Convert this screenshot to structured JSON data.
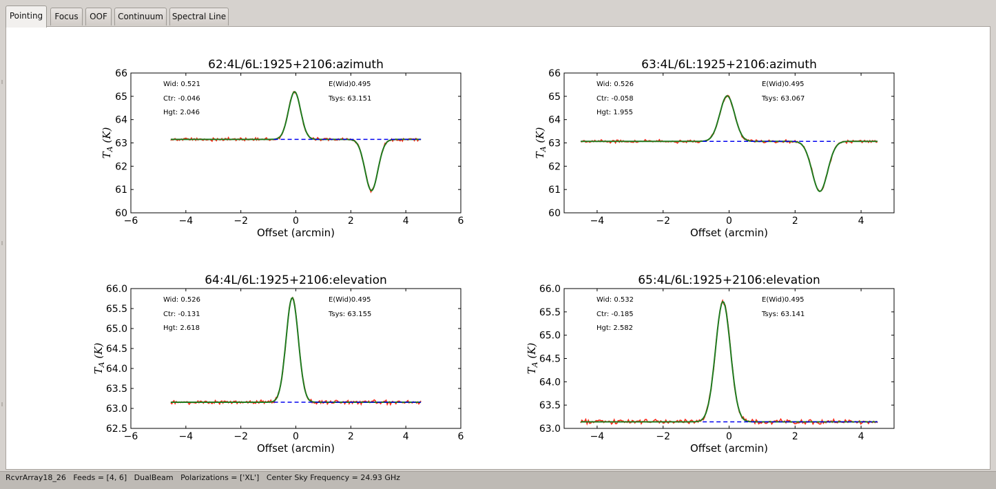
{
  "tabs": [
    {
      "label": "Pointing",
      "active": true
    },
    {
      "label": "Focus",
      "active": false
    },
    {
      "label": "OOF",
      "active": false
    },
    {
      "label": "Continuum",
      "active": false
    },
    {
      "label": "Spectral Line",
      "active": false
    }
  ],
  "status_bar": {
    "receiver": "RcvrArray18_26",
    "feeds": "Feeds = [4, 6]",
    "mode": "DualBeam",
    "polarizations": "Polarizations = ['XL']",
    "frequency": "Center Sky Frequency = 24.93 GHz"
  },
  "colors": {
    "data_line": "#ff2a1a",
    "fit_line": "#1f7a1f",
    "baseline": "#0000ee"
  },
  "chart_data": [
    {
      "type": "line",
      "title": "62:4L/6L:1925+2106:azimuth",
      "xlabel": "Offset (arcmin)",
      "ylabel": "T_A (K)",
      "xlim": [
        -6,
        6
      ],
      "ylim": [
        60,
        66
      ],
      "xticks": [
        -6,
        -4,
        -2,
        0,
        2,
        4,
        6
      ],
      "yticks": [
        60,
        61,
        62,
        63,
        64,
        65,
        66
      ],
      "ytick_labels": [
        "60",
        "61",
        "62",
        "63",
        "64",
        "65",
        "66"
      ],
      "xtick_labels": [
        "−6",
        "−4",
        "−2",
        "0",
        "2",
        "4",
        "6"
      ],
      "annotations": {
        "wid": "Wid: 0.521",
        "ctr": "Ctr: -0.046",
        "hgt": "Hgt: 2.046",
        "ewid": "E(Wid)0.495",
        "tsys": "Tsys: 63.151"
      },
      "baseline": 63.151,
      "data_range": [
        -4.55,
        4.55
      ],
      "baseline_range": [
        -0.8,
        4.55
      ],
      "gaussians": [
        {
          "amp": 2.046,
          "ctr": -0.046,
          "wid": 0.521
        },
        {
          "amp": -2.2,
          "ctr": 2.75,
          "wid": 0.55
        }
      ],
      "noise": 0.04,
      "series": [
        {
          "name": "data",
          "role": "data"
        },
        {
          "name": "fit",
          "role": "fit"
        },
        {
          "name": "baseline",
          "role": "baseline"
        }
      ]
    },
    {
      "type": "line",
      "title": "63:4L/6L:1925+2106:azimuth",
      "xlabel": "Offset (arcmin)",
      "ylabel": "T_A (K)",
      "xlim": [
        -5,
        5
      ],
      "ylim": [
        60,
        66
      ],
      "xticks": [
        -4,
        -2,
        0,
        2,
        4
      ],
      "yticks": [
        60,
        61,
        62,
        63,
        64,
        65,
        66
      ],
      "ytick_labels": [
        "60",
        "61",
        "62",
        "63",
        "64",
        "65",
        "66"
      ],
      "xtick_labels": [
        "−4",
        "−2",
        "0",
        "2",
        "4"
      ],
      "annotations": {
        "wid": "Wid: 0.526",
        "ctr": "Ctr: -0.058",
        "hgt": "Hgt: 1.955",
        "ewid": "E(Wid)0.495",
        "tsys": "Tsys: 63.067"
      },
      "baseline": 63.067,
      "data_range": [
        -4.5,
        4.5
      ],
      "baseline_range": [
        -0.8,
        3.2
      ],
      "gaussians": [
        {
          "amp": 1.955,
          "ctr": -0.058,
          "wid": 0.526
        },
        {
          "amp": -2.15,
          "ctr": 2.75,
          "wid": 0.55
        }
      ],
      "noise": 0.04,
      "series": [
        {
          "name": "data",
          "role": "data"
        },
        {
          "name": "fit",
          "role": "fit"
        },
        {
          "name": "baseline",
          "role": "baseline"
        }
      ]
    },
    {
      "type": "line",
      "title": "64:4L/6L:1925+2106:elevation",
      "xlabel": "Offset (arcmin)",
      "ylabel": "T_A (K)",
      "xlim": [
        -6,
        6
      ],
      "ylim": [
        62.5,
        66.0
      ],
      "xticks": [
        -6,
        -4,
        -2,
        0,
        2,
        4,
        6
      ],
      "yticks": [
        62.5,
        63.0,
        63.5,
        64.0,
        64.5,
        65.0,
        65.5,
        66.0
      ],
      "ytick_labels": [
        "62.5",
        "63.0",
        "63.5",
        "64.0",
        "64.5",
        "65.0",
        "65.5",
        "66.0"
      ],
      "xtick_labels": [
        "−6",
        "−4",
        "−2",
        "0",
        "2",
        "4",
        "6"
      ],
      "annotations": {
        "wid": "Wid: 0.526",
        "ctr": "Ctr: -0.131",
        "hgt": "Hgt: 2.618",
        "ewid": "E(Wid)0.495",
        "tsys": "Tsys: 63.155"
      },
      "baseline": 63.155,
      "data_range": [
        -4.55,
        4.55
      ],
      "baseline_range": [
        -0.8,
        4.55
      ],
      "gaussians": [
        {
          "amp": 2.618,
          "ctr": -0.131,
          "wid": 0.526
        }
      ],
      "noise": 0.03,
      "series": [
        {
          "name": "data",
          "role": "data"
        },
        {
          "name": "fit",
          "role": "fit"
        },
        {
          "name": "baseline",
          "role": "baseline"
        }
      ]
    },
    {
      "type": "line",
      "title": "65:4L/6L:1925+2106:elevation",
      "xlabel": "Offset (arcmin)",
      "ylabel": "T_A (K)",
      "xlim": [
        -5,
        5
      ],
      "ylim": [
        63.0,
        66.0
      ],
      "xticks": [
        -4,
        -2,
        0,
        2,
        4
      ],
      "yticks": [
        63.0,
        63.5,
        64.0,
        64.5,
        65.0,
        65.5,
        66.0
      ],
      "ytick_labels": [
        "63.0",
        "63.5",
        "64.0",
        "64.5",
        "65.0",
        "65.5",
        "66.0"
      ],
      "xtick_labels": [
        "−4",
        "−2",
        "0",
        "2",
        "4"
      ],
      "annotations": {
        "wid": "Wid: 0.532",
        "ctr": "Ctr: -0.185",
        "hgt": "Hgt: 2.582",
        "ewid": "E(Wid)0.495",
        "tsys": "Tsys: 63.141"
      },
      "baseline": 63.141,
      "data_range": [
        -4.5,
        4.5
      ],
      "baseline_range": [
        -0.8,
        4.5
      ],
      "gaussians": [
        {
          "amp": 2.582,
          "ctr": -0.185,
          "wid": 0.532
        }
      ],
      "noise": 0.03,
      "series": [
        {
          "name": "data",
          "role": "data"
        },
        {
          "name": "fit",
          "role": "fit"
        },
        {
          "name": "baseline",
          "role": "baseline"
        }
      ]
    }
  ]
}
